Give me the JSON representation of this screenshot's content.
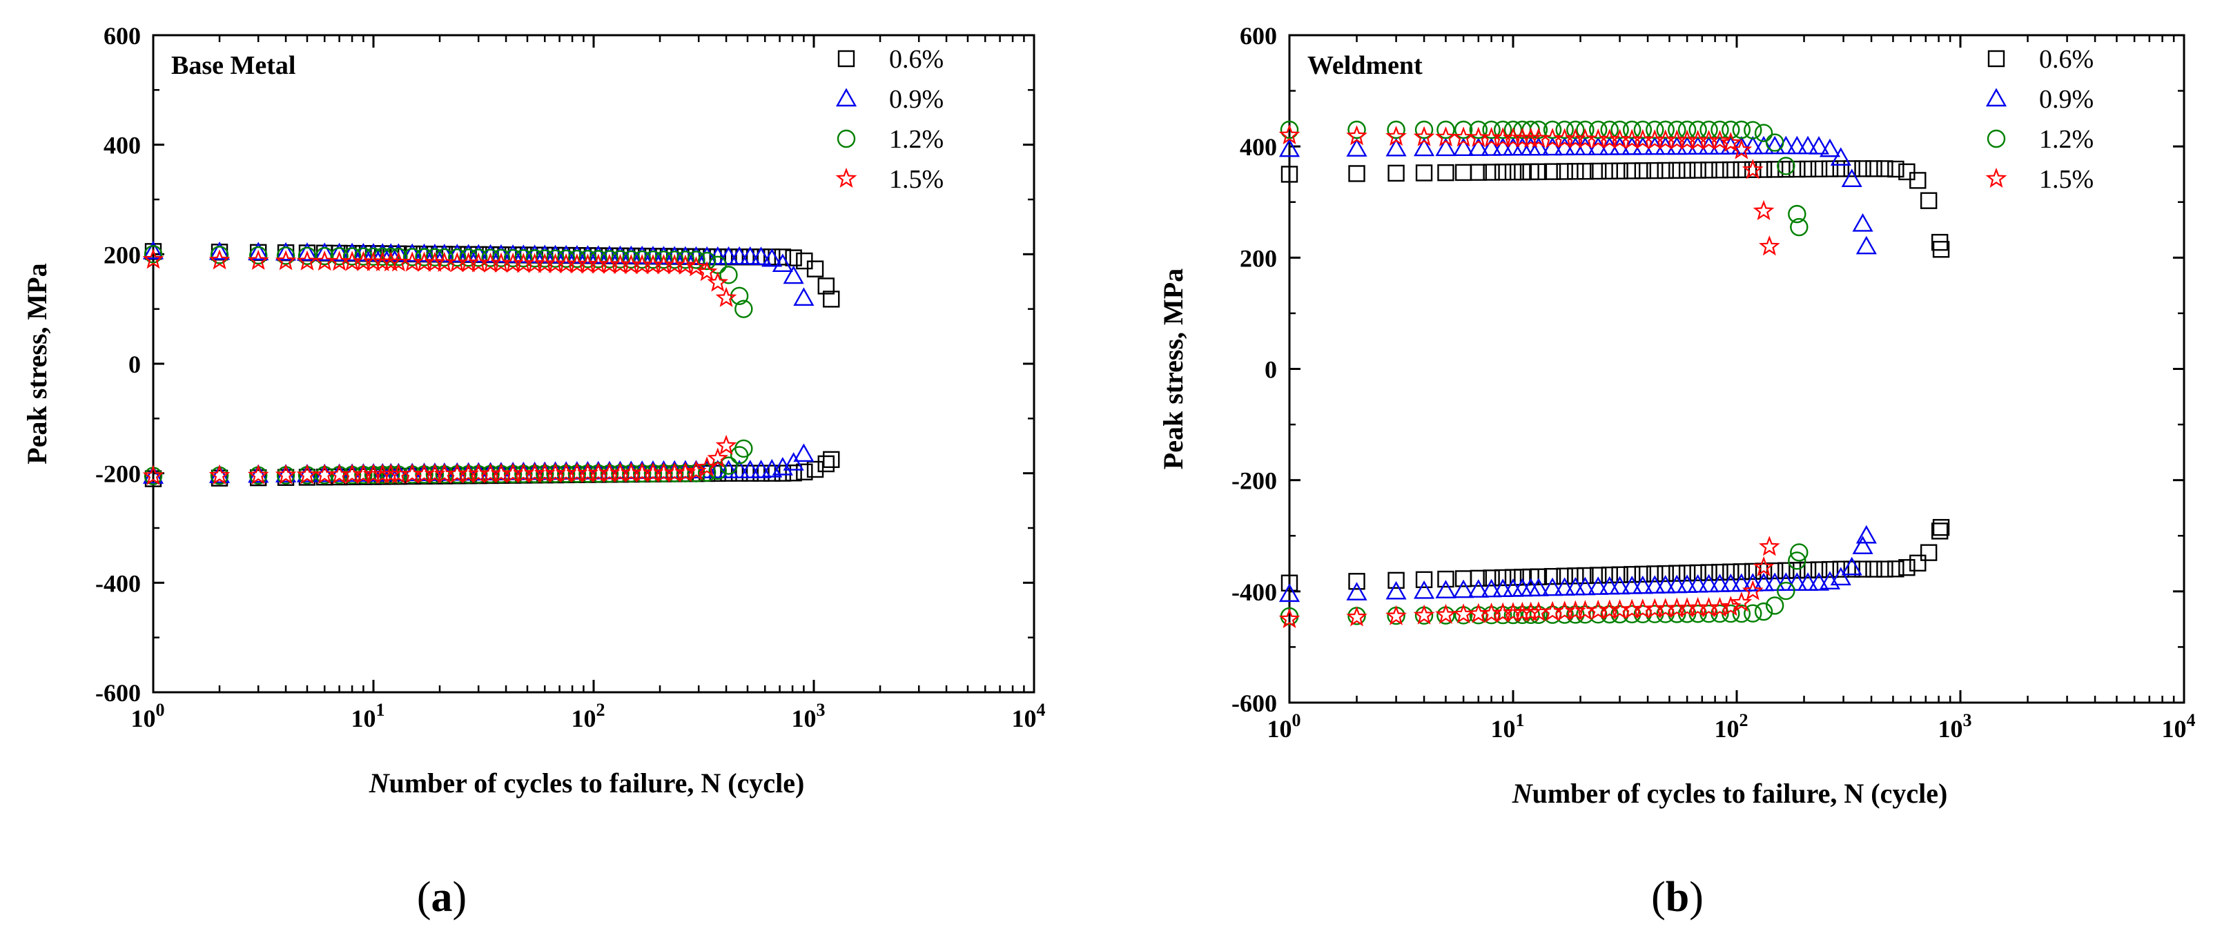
{
  "chart_data": [
    {
      "panel_label": "(a)",
      "type": "scatter",
      "title": "Base Metal",
      "xlabel": "Number of cycles to failure, N (cycle)",
      "ylabel": "Peak stress, MPa",
      "xscale": "log",
      "xlim": [
        1,
        10000
      ],
      "ylim": [
        -600,
        600
      ],
      "xticks": [
        1,
        10,
        100,
        1000,
        10000
      ],
      "yticks": [
        -600,
        -400,
        -200,
        0,
        200,
        400,
        600
      ],
      "legend_position": "top-right",
      "series": [
        {
          "name": "0.6%",
          "marker": "square",
          "color": "#000000",
          "n_failure": 1200,
          "tension": {
            "start": 205,
            "mid": 195,
            "end": 118
          },
          "compression": {
            "start": -210,
            "mid": -200,
            "end": -175
          }
        },
        {
          "name": "0.9%",
          "marker": "triangle",
          "color": "#0000ee",
          "n_failure": 900,
          "tension": {
            "start": 205,
            "mid": 195,
            "end": 120
          },
          "compression": {
            "start": -205,
            "mid": -195,
            "end": -165
          }
        },
        {
          "name": "1.2%",
          "marker": "circle",
          "color": "#008000",
          "n_failure": 480,
          "tension": {
            "start": 200,
            "mid": 190,
            "end": 100
          },
          "compression": {
            "start": -205,
            "mid": -200,
            "end": -155
          }
        },
        {
          "name": "1.5%",
          "marker": "star",
          "color": "#ff0000",
          "n_failure": 400,
          "tension": {
            "start": 190,
            "mid": 180,
            "end": 120
          },
          "compression": {
            "start": -205,
            "mid": -200,
            "end": -150
          }
        }
      ]
    },
    {
      "panel_label": "(b)",
      "type": "scatter",
      "title": "Weldment",
      "xlabel": "Number of cycles to failure, N (cycle)",
      "ylabel": "Peak stress, MPa",
      "xscale": "log",
      "xlim": [
        1,
        10000
      ],
      "ylim": [
        -600,
        600
      ],
      "xticks": [
        1,
        10,
        100,
        1000,
        10000
      ],
      "yticks": [
        -600,
        -400,
        -200,
        0,
        200,
        400,
        600
      ],
      "legend_position": "top-right",
      "series": [
        {
          "name": "0.6%",
          "marker": "square",
          "color": "#000000",
          "n_failure": 820,
          "tension": {
            "start": 350,
            "mid": 360,
            "end": 215
          },
          "compression": {
            "start": -385,
            "mid": -360,
            "end": -285
          }
        },
        {
          "name": "0.9%",
          "marker": "triangle",
          "color": "#0000ee",
          "n_failure": 380,
          "tension": {
            "start": 395,
            "mid": 400,
            "end": 220
          },
          "compression": {
            "start": -405,
            "mid": -385,
            "end": -300
          }
        },
        {
          "name": "1.2%",
          "marker": "circle",
          "color": "#008000",
          "n_failure": 190,
          "tension": {
            "start": 430,
            "mid": 430,
            "end": 255
          },
          "compression": {
            "start": -445,
            "mid": -440,
            "end": -330
          }
        },
        {
          "name": "1.5%",
          "marker": "star",
          "color": "#ff0000",
          "n_failure": 140,
          "tension": {
            "start": 420,
            "mid": 410,
            "end": 220
          },
          "compression": {
            "start": -450,
            "mid": -430,
            "end": -320
          }
        }
      ]
    }
  ]
}
